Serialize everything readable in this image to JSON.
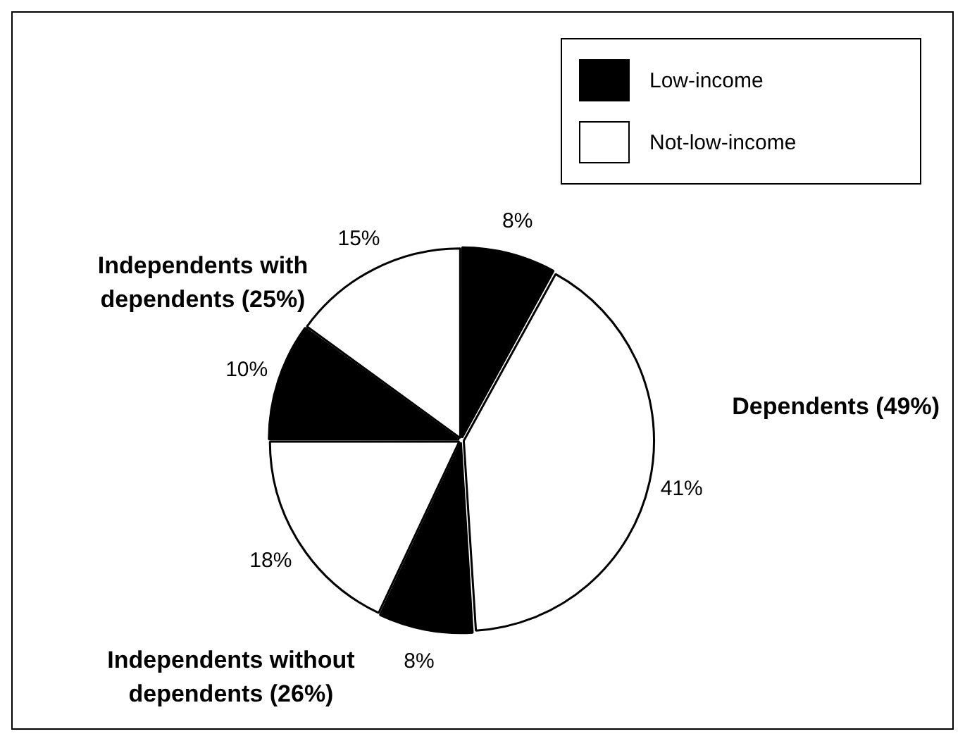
{
  "chart_data": {
    "type": "pie",
    "categories": [
      "Low-income",
      "Not-low-income",
      null,
      null,
      null,
      null
    ],
    "values": [
      8,
      41,
      8,
      18,
      10,
      15
    ],
    "colors": [
      "#000000",
      "#ffffff",
      "#000000",
      "#ffffff",
      "#000000",
      "#ffffff"
    ],
    "value_labels": [
      "8%",
      "41%",
      "8%",
      "18%",
      "10%",
      "15%"
    ],
    "legend": "top right",
    "annotations": [
      "Dependents (49%)",
      "Independents without dependents (26%)",
      "Independents with dependents (25%)"
    ]
  }
}
